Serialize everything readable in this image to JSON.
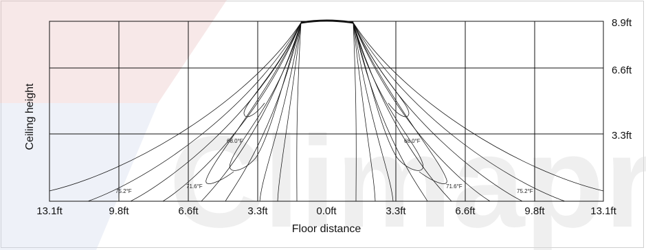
{
  "watermark": {
    "text": "Climapro",
    "colors": {
      "red": "#e7b8b8",
      "blue": "#c9d4e8",
      "gray": "#e2e2e2"
    }
  },
  "axes": {
    "x_title": "Floor distance",
    "y_title": "Ceiling height",
    "x_ticks": [
      "13.1ft",
      "9.8ft",
      "6.6ft",
      "3.3ft",
      "0.0ft",
      "3.3ft",
      "6.6ft",
      "9.8ft",
      "13.1ft"
    ],
    "y_ticks": [
      "8.9ft",
      "6.6ft",
      "3.3ft"
    ]
  },
  "temperature_labels": {
    "left_inner": "68.0°F",
    "left_mid": "71.6°F",
    "left_outer": "75.2°F",
    "right_inner": "68.0°F",
    "right_mid": "71.6°F",
    "right_outer": "75.2°F"
  },
  "colors": {
    "line": "#111111",
    "background": "#ffffff"
  }
}
